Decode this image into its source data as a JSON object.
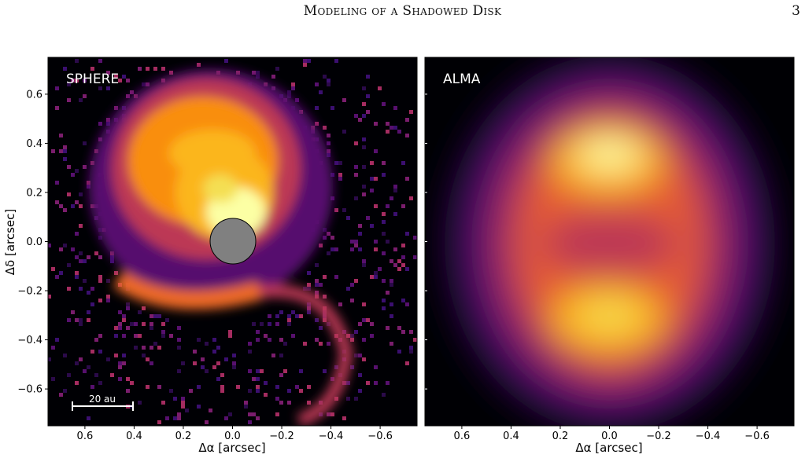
{
  "header": {
    "running_title": "Modeling of a Shadowed Disk",
    "page_number": "3"
  },
  "figure": {
    "panels": [
      {
        "label": "SPHERE"
      },
      {
        "label": "ALMA"
      }
    ],
    "scale_bar_label": "20 au",
    "xlabel": "Δα [arcsec]",
    "ylabel": "Δδ [arcsec]"
  },
  "chart_data": [
    {
      "type": "heatmap",
      "panel": "SPHERE",
      "xlabel": "Δα [arcsec]",
      "ylabel": "Δδ [arcsec]",
      "xlim": [
        0.75,
        -0.75
      ],
      "ylim": [
        -0.75,
        0.75
      ],
      "xticks": [
        0.6,
        0.4,
        0.2,
        0.0,
        -0.2,
        -0.4,
        -0.6
      ],
      "xtick_labels": [
        "0.6",
        "0.4",
        "0.2",
        "0.0",
        "−0.2",
        "−0.4",
        "−0.6"
      ],
      "yticks": [
        0.6,
        0.4,
        0.2,
        0.0,
        -0.2,
        -0.4,
        -0.6
      ],
      "ytick_labels": [
        "0.6",
        "0.4",
        "0.2",
        "0.0",
        "−0.2",
        "−0.4",
        "−0.6"
      ],
      "colormap": "inferno",
      "coronagraph_mask_radius_arcsec": 0.09,
      "scale_bar_arcsec": 0.26
    },
    {
      "type": "heatmap",
      "panel": "ALMA",
      "xlabel": "Δα [arcsec]",
      "xlim": [
        0.75,
        -0.75
      ],
      "ylim": [
        -0.75,
        0.75
      ],
      "xticks": [
        0.6,
        0.4,
        0.2,
        0.0,
        -0.2,
        -0.4,
        -0.6
      ],
      "xtick_labels": [
        "0.6",
        "0.4",
        "0.2",
        "0.0",
        "−0.2",
        "−0.4",
        "−0.6"
      ],
      "colormap": "inferno"
    }
  ]
}
